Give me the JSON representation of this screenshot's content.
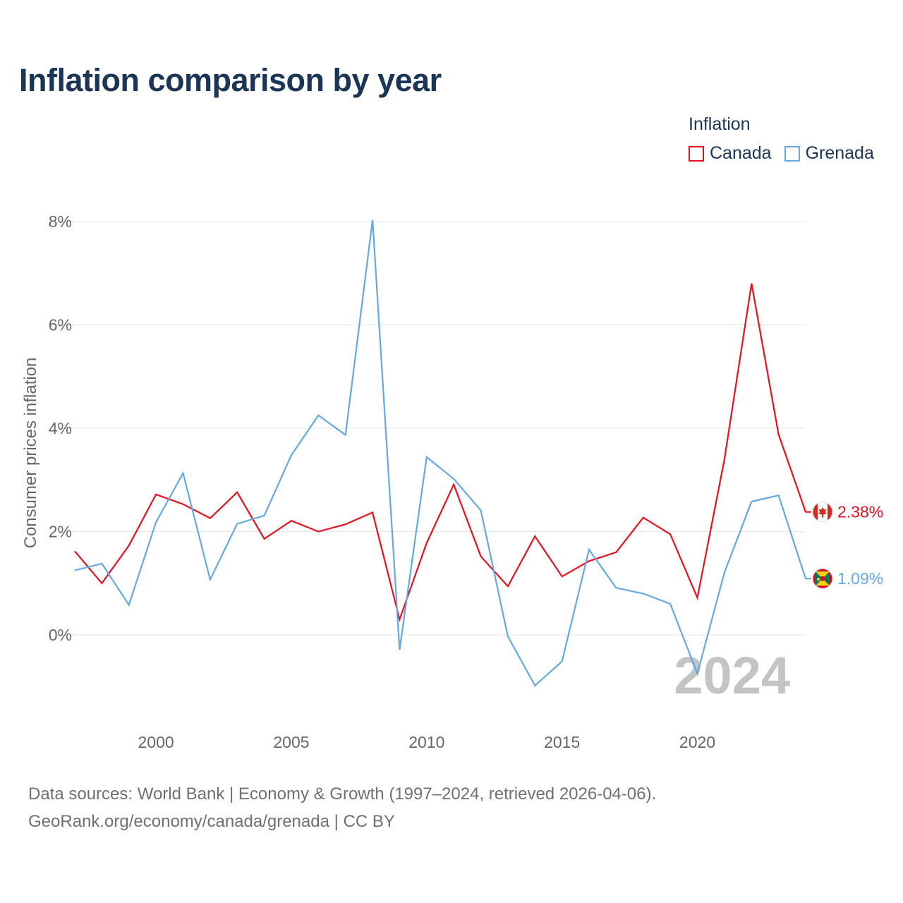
{
  "title": "Inflation comparison by year",
  "legend": {
    "title": "Inflation",
    "items": [
      {
        "label": "Canada",
        "color": "#e8101e"
      },
      {
        "label": "Grenada",
        "color": "#64a8e4"
      }
    ]
  },
  "chart_data": {
    "type": "line",
    "title": "Inflation comparison by year",
    "xlabel": "",
    "ylabel": "Consumer prices inflation",
    "x": [
      1997,
      1998,
      1999,
      2000,
      2001,
      2002,
      2003,
      2004,
      2005,
      2006,
      2007,
      2008,
      2009,
      2010,
      2011,
      2012,
      2013,
      2014,
      2015,
      2016,
      2017,
      2018,
      2019,
      2020,
      2021,
      2022,
      2023,
      2024
    ],
    "xlim": [
      1997,
      2024
    ],
    "ylim": [
      -1.6,
      8.3
    ],
    "xticks": [
      2000,
      2005,
      2010,
      2015,
      2020
    ],
    "xtick_labels": [
      "2000",
      "2005",
      "2010",
      "2015",
      "2020"
    ],
    "yticks": [
      0,
      2,
      4,
      6,
      8
    ],
    "ytick_labels": [
      "0%",
      "2%",
      "4%",
      "6%",
      "8%"
    ],
    "grid": true,
    "legend_position": "top-right",
    "series": [
      {
        "name": "Canada",
        "color": "#e8101e",
        "values": [
          1.62,
          1.0,
          1.73,
          2.72,
          2.53,
          2.26,
          2.76,
          1.86,
          2.21,
          2.0,
          2.14,
          2.37,
          0.3,
          1.78,
          2.91,
          1.52,
          0.94,
          1.91,
          1.13,
          1.43,
          1.6,
          2.27,
          1.95,
          0.72,
          3.4,
          6.8,
          3.88,
          2.38
        ],
        "end_label": "2.38%"
      },
      {
        "name": "Grenada",
        "color": "#64a8e4",
        "values": [
          1.25,
          1.38,
          0.58,
          2.18,
          3.13,
          1.07,
          2.15,
          2.31,
          3.48,
          4.25,
          3.87,
          8.03,
          -0.29,
          3.44,
          3.02,
          2.41,
          -0.03,
          -0.98,
          -0.51,
          1.65,
          0.91,
          0.8,
          0.6,
          -0.75,
          1.21,
          2.58,
          2.7,
          1.09
        ],
        "end_label": "1.09%"
      }
    ],
    "annotations": [
      "2024"
    ]
  },
  "watermark_year": "2024",
  "flags": [
    "canada-flag-icon",
    "grenada-flag-icon"
  ],
  "source": {
    "line1": "Data sources: World Bank | Economy & Growth (1997–2024, retrieved 2026-04-06).",
    "line2": "GeoRank.org/economy/canada/grenada | CC BY"
  }
}
